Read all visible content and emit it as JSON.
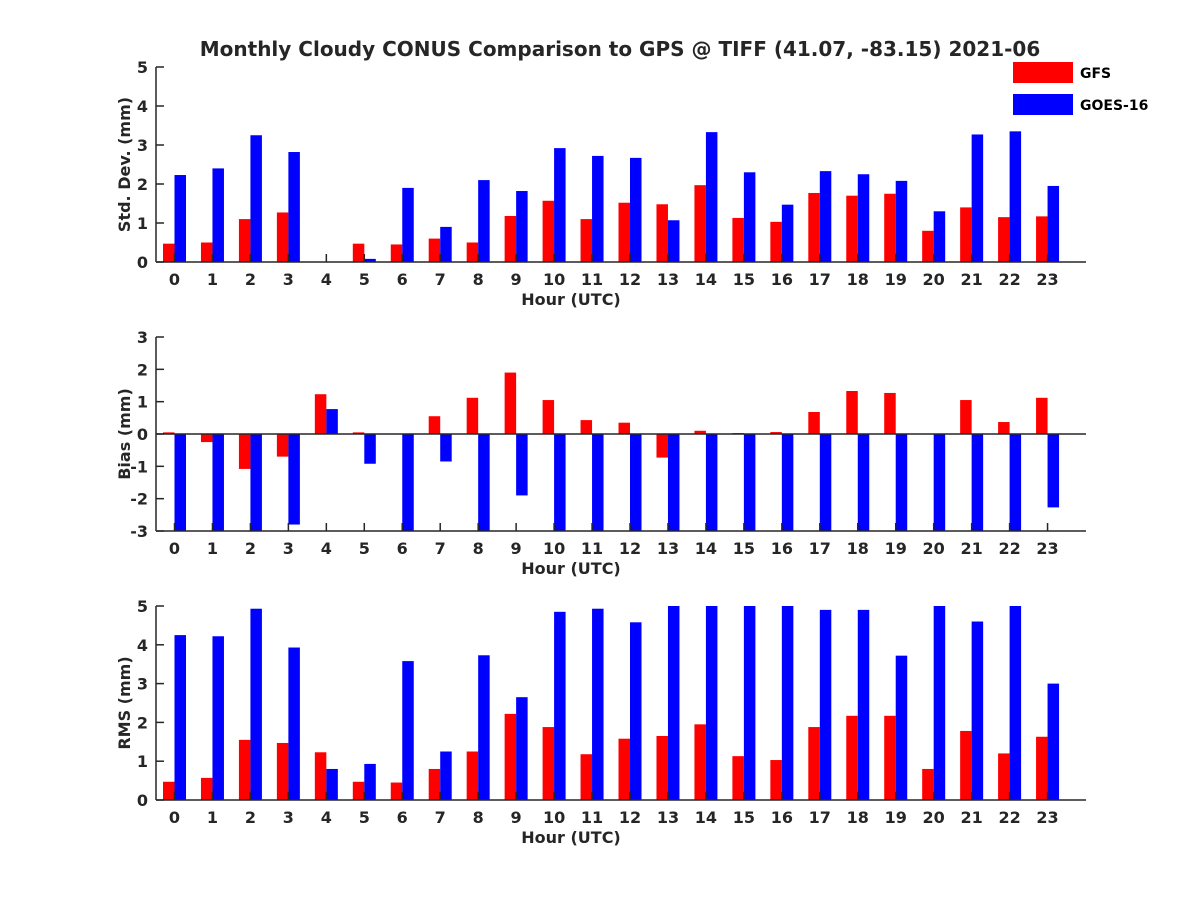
{
  "title": "Monthly Cloudy CONUS Comparison to GPS @ TIFF (41.07, -83.15) 2021-06",
  "legend": {
    "placement": "top-right",
    "entries": [
      {
        "name": "GFS",
        "color": "#ff0000"
      },
      {
        "name": "GOES-16",
        "color": "#0000ff"
      }
    ]
  },
  "chart_data": [
    {
      "type": "bar",
      "ylabel": "Std. Dev. (mm)",
      "xlabel": "Hour (UTC)",
      "ylim": [
        0,
        5
      ],
      "yticks": [
        0,
        1,
        2,
        3,
        4,
        5
      ],
      "categories": [
        "0",
        "1",
        "2",
        "3",
        "4",
        "5",
        "6",
        "7",
        "8",
        "9",
        "10",
        "11",
        "12",
        "13",
        "14",
        "15",
        "16",
        "17",
        "18",
        "19",
        "20",
        "21",
        "22",
        "23"
      ],
      "series": [
        {
          "name": "GFS",
          "color": "#ff0000",
          "values": [
            0.47,
            0.5,
            1.1,
            1.27,
            0,
            0.47,
            0.45,
            0.6,
            0.5,
            1.18,
            1.57,
            1.1,
            1.52,
            1.48,
            1.97,
            1.13,
            1.03,
            1.77,
            1.7,
            1.75,
            0.8,
            1.4,
            1.15,
            1.17
          ]
        },
        {
          "name": "GOES-16",
          "color": "#0000ff",
          "values": [
            2.23,
            2.4,
            3.25,
            2.82,
            0,
            0.08,
            1.9,
            0.9,
            2.1,
            1.82,
            2.92,
            2.72,
            2.67,
            1.07,
            3.33,
            2.3,
            1.47,
            2.33,
            2.25,
            2.08,
            1.3,
            3.27,
            3.35,
            1.95
          ]
        }
      ]
    },
    {
      "type": "bar",
      "ylabel": "Bias (mm)",
      "xlabel": "Hour (UTC)",
      "ylim": [
        -3,
        3
      ],
      "yticks": [
        -3,
        -2,
        -1,
        0,
        1,
        2,
        3
      ],
      "categories": [
        "0",
        "1",
        "2",
        "3",
        "4",
        "5",
        "6",
        "7",
        "8",
        "9",
        "10",
        "11",
        "12",
        "13",
        "14",
        "15",
        "16",
        "17",
        "18",
        "19",
        "20",
        "21",
        "22",
        "23"
      ],
      "series": [
        {
          "name": "GFS",
          "color": "#ff0000",
          "values": [
            0.05,
            -0.25,
            -1.08,
            -0.7,
            1.23,
            0.05,
            0,
            0.55,
            1.12,
            1.9,
            1.05,
            0.43,
            0.35,
            -0.73,
            0.1,
            0.03,
            0.06,
            0.68,
            1.33,
            1.27,
            0,
            1.05,
            0.37,
            1.12
          ]
        },
        {
          "name": "GOES-16",
          "color": "#0000ff",
          "values": [
            -3,
            -3,
            -3,
            -2.8,
            0.77,
            -0.92,
            -3,
            -0.85,
            -3,
            -1.9,
            -3,
            -3,
            -3,
            -3,
            -3,
            -3,
            -3,
            -3,
            -3,
            -3,
            -3,
            -3,
            -3,
            -2.27
          ]
        }
      ]
    },
    {
      "type": "bar",
      "ylabel": "RMS (mm)",
      "xlabel": "Hour (UTC)",
      "ylim": [
        0,
        5
      ],
      "yticks": [
        0,
        1,
        2,
        3,
        4,
        5
      ],
      "categories": [
        "0",
        "1",
        "2",
        "3",
        "4",
        "5",
        "6",
        "7",
        "8",
        "9",
        "10",
        "11",
        "12",
        "13",
        "14",
        "15",
        "16",
        "17",
        "18",
        "19",
        "20",
        "21",
        "22",
        "23"
      ],
      "series": [
        {
          "name": "GFS",
          "color": "#ff0000",
          "values": [
            0.47,
            0.57,
            1.55,
            1.47,
            1.23,
            0.47,
            0.45,
            0.8,
            1.25,
            2.22,
            1.88,
            1.18,
            1.58,
            1.65,
            1.95,
            1.13,
            1.03,
            1.88,
            2.17,
            2.17,
            0.8,
            1.78,
            1.2,
            1.63
          ]
        },
        {
          "name": "GOES-16",
          "color": "#0000ff",
          "values": [
            4.25,
            4.22,
            4.93,
            3.93,
            0.8,
            0.93,
            3.58,
            1.25,
            3.73,
            2.65,
            4.85,
            4.93,
            4.58,
            5,
            5,
            5,
            5,
            4.9,
            4.9,
            3.72,
            5,
            4.6,
            5,
            3.0
          ]
        }
      ]
    }
  ]
}
